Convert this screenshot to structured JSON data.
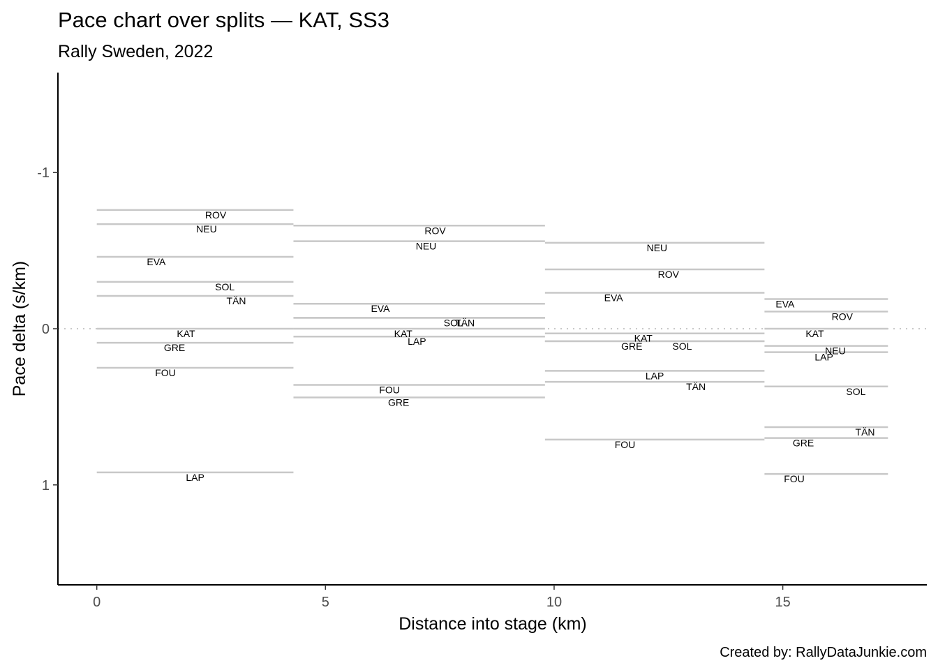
{
  "chart_data": {
    "type": "line",
    "title": "Pace chart over splits — KAT, SS3",
    "subtitle": "Rally Sweden, 2022",
    "xlabel": "Distance into stage (km)",
    "ylabel": "Pace delta (s/km)",
    "caption": "Created by: RallyDataJunkie.com",
    "xlim": [
      -0.85,
      18.15
    ],
    "ylim": [
      -1.64,
      1.64
    ],
    "y_reversed": true,
    "grid": false,
    "reference_line": {
      "y": 0,
      "style": "dotted"
    },
    "x_ticks": [
      {
        "value": 0,
        "label": "0"
      },
      {
        "value": 5,
        "label": "5"
      },
      {
        "value": 10,
        "label": "10"
      },
      {
        "value": 15,
        "label": "15"
      }
    ],
    "y_ticks": [
      {
        "value": -1,
        "label": "-1"
      },
      {
        "value": 0,
        "label": "0"
      },
      {
        "value": 1,
        "label": "1"
      }
    ],
    "splits": [
      {
        "start": 0,
        "end": 4.3,
        "drivers": [
          {
            "name": "ROV",
            "value": -0.76,
            "label_x": 2.6
          },
          {
            "name": "NEU",
            "value": -0.67,
            "label_x": 2.4
          },
          {
            "name": "EVA",
            "value": -0.46,
            "label_x": 1.3
          },
          {
            "name": "SOL",
            "value": -0.3,
            "label_x": 2.8
          },
          {
            "name": "TÄN",
            "value": -0.21,
            "label_x": 3.05
          },
          {
            "name": "KAT",
            "value": 0.0,
            "label_x": 1.95
          },
          {
            "name": "GRE",
            "value": 0.09,
            "label_x": 1.7
          },
          {
            "name": "FOU",
            "value": 0.25,
            "label_x": 1.5
          },
          {
            "name": "LAP",
            "value": 0.92,
            "label_x": 2.15
          }
        ]
      },
      {
        "start": 4.3,
        "end": 9.8,
        "drivers": [
          {
            "name": "ROV",
            "value": -0.66,
            "label_x": 7.4
          },
          {
            "name": "NEU",
            "value": -0.56,
            "label_x": 7.2
          },
          {
            "name": "EVA",
            "value": -0.16,
            "label_x": 6.2
          },
          {
            "name": "SOL",
            "value": -0.07,
            "label_x": 7.8
          },
          {
            "name": "TÄN",
            "value": -0.07,
            "label_x": 8.05
          },
          {
            "name": "KAT",
            "value": 0.0,
            "label_x": 6.7
          },
          {
            "name": "LAP",
            "value": 0.05,
            "label_x": 7.0
          },
          {
            "name": "FOU",
            "value": 0.36,
            "label_x": 6.4
          },
          {
            "name": "GRE",
            "value": 0.44,
            "label_x": 6.6
          }
        ]
      },
      {
        "start": 9.8,
        "end": 14.6,
        "drivers": [
          {
            "name": "NEU",
            "value": -0.55,
            "label_x": 12.25
          },
          {
            "name": "ROV",
            "value": -0.38,
            "label_x": 12.5
          },
          {
            "name": "EVA",
            "value": -0.23,
            "label_x": 11.3
          },
          {
            "name": "KAT",
            "value": 0.03,
            "label_x": 11.95
          },
          {
            "name": "SOL",
            "value": 0.08,
            "label_x": 12.8
          },
          {
            "name": "GRE",
            "value": 0.08,
            "label_x": 11.7
          },
          {
            "name": "LAP",
            "value": 0.27,
            "label_x": 12.2
          },
          {
            "name": "TÄN",
            "value": 0.34,
            "label_x": 13.1
          },
          {
            "name": "FOU",
            "value": 0.71,
            "label_x": 11.55
          }
        ]
      },
      {
        "start": 14.6,
        "end": 17.3,
        "drivers": [
          {
            "name": "EVA",
            "value": -0.19,
            "label_x": 15.05
          },
          {
            "name": "ROV",
            "value": -0.11,
            "label_x": 16.3
          },
          {
            "name": "KAT",
            "value": 0.0,
            "label_x": 15.7
          },
          {
            "name": "NEU",
            "value": 0.11,
            "label_x": 16.15
          },
          {
            "name": "LAP",
            "value": 0.15,
            "label_x": 15.9
          },
          {
            "name": "SOL",
            "value": 0.37,
            "label_x": 16.6
          },
          {
            "name": "TÄN",
            "value": 0.63,
            "label_x": 16.8
          },
          {
            "name": "GRE",
            "value": 0.7,
            "label_x": 15.45
          },
          {
            "name": "FOU",
            "value": 0.93,
            "label_x": 15.25
          }
        ]
      }
    ],
    "colors": {
      "segment": "#c8c8c8",
      "reference": "#c8c8c8",
      "axis": "#000000",
      "tick_label": "#4d4d4d"
    }
  }
}
